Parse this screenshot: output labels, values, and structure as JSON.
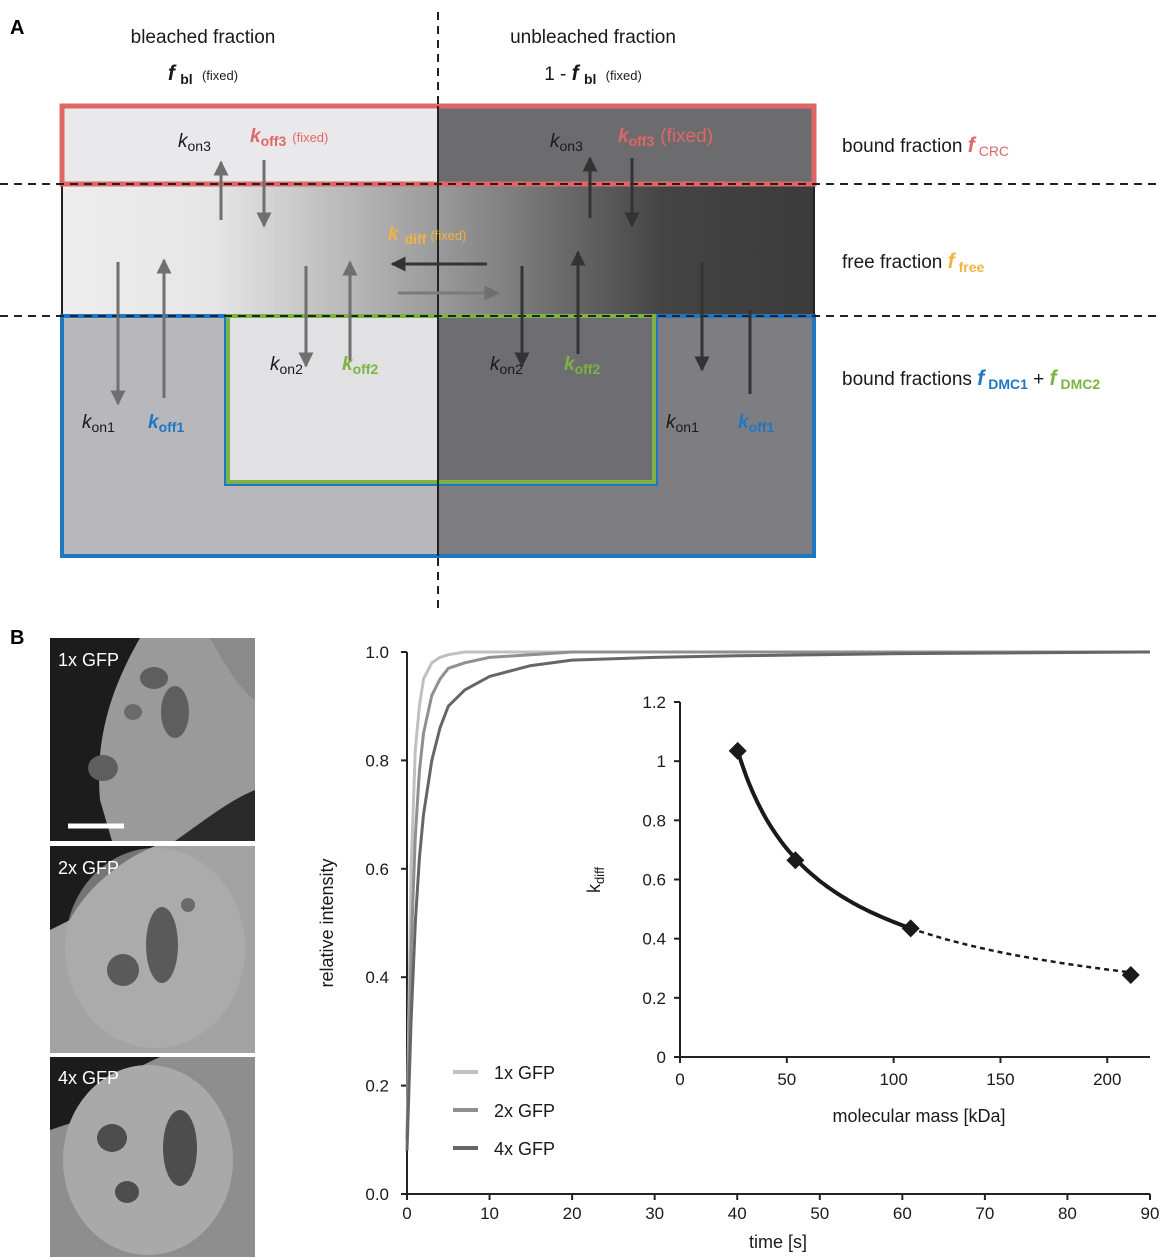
{
  "panel_a": {
    "letter": "A",
    "bleached_title": "bleached fraction",
    "bleached_symbol": "f",
    "bleached_sub": "bl",
    "bleached_fixed": "(fixed)",
    "unbleached_title": "unbleached fraction",
    "unbleached_prefix": "1 - ",
    "unbleached_symbol": "f",
    "unbleached_sub": "bl",
    "unbleached_fixed": "(fixed)",
    "bound_label": "bound fraction ",
    "bound_symbol": "f",
    "bound_sub": "CRC",
    "free_label": "free fraction ",
    "free_symbol": "f",
    "free_sub": "free",
    "bound2_label": "bound fractions ",
    "bound2_symbol1": "f",
    "bound2_sub1": "DMC1",
    "bound2_plus": " + ",
    "bound2_symbol2": "f",
    "bound2_sub2": "DMC2",
    "k": "k",
    "on3": "on3",
    "off3": "off3",
    "fixed": "(fixed)",
    "diff": "diff",
    "on2": "on2",
    "off2": "off2",
    "on1": "on1",
    "off1": "off1",
    "colors": {
      "crc": "#e06666",
      "free": "#f2b441",
      "dmc1": "#1f77c4",
      "dmc2": "#7cb342"
    }
  },
  "panel_b": {
    "letter": "B",
    "images": [
      {
        "label": "1x GFP"
      },
      {
        "label": "2x GFP"
      },
      {
        "label": "4x GFP"
      }
    ]
  },
  "chart_data": [
    {
      "type": "line",
      "xlabel": "time [s]",
      "ylabel": "relative intensity",
      "xlim": [
        0,
        90
      ],
      "ylim": [
        0,
        1.0
      ],
      "xticks": [
        "0",
        "10",
        "20",
        "30",
        "40",
        "50",
        "60",
        "70",
        "80",
        "90"
      ],
      "yticks": [
        "0.0",
        "0.2",
        "0.4",
        "0.6",
        "0.8",
        "1.0"
      ],
      "legend_position": "bottom-left",
      "series": [
        {
          "name": "1x GFP",
          "color": "#c0c0c0",
          "x": [
            0,
            0.5,
            1,
            1.5,
            2,
            3,
            4,
            5,
            7,
            10,
            20,
            90
          ],
          "y": [
            0.1,
            0.6,
            0.82,
            0.9,
            0.95,
            0.98,
            0.99,
            0.995,
            1.0,
            1.0,
            1.0,
            1.0
          ]
        },
        {
          "name": "2x GFP",
          "color": "#8f8f8f",
          "x": [
            0,
            0.5,
            1,
            1.5,
            2,
            3,
            4,
            5,
            7,
            10,
            15,
            20,
            30,
            90
          ],
          "y": [
            0.1,
            0.45,
            0.66,
            0.78,
            0.85,
            0.92,
            0.95,
            0.97,
            0.98,
            0.99,
            0.995,
            1.0,
            1.0,
            1.0
          ]
        },
        {
          "name": "4x GFP",
          "color": "#666666",
          "x": [
            0,
            0.5,
            1,
            1.5,
            2,
            3,
            4,
            5,
            7,
            10,
            15,
            20,
            30,
            40,
            60,
            90
          ],
          "y": [
            0.08,
            0.32,
            0.5,
            0.62,
            0.7,
            0.8,
            0.86,
            0.9,
            0.93,
            0.955,
            0.975,
            0.985,
            0.99,
            0.993,
            0.997,
            1.0
          ]
        }
      ]
    },
    {
      "type": "scatter",
      "xlabel": "molecular mass [kDa]",
      "ylabel": "k",
      "ylabel_sub": "diff",
      "xlim": [
        0,
        220
      ],
      "ylim": [
        0,
        1.2
      ],
      "xticks": [
        "0",
        "50",
        "100",
        "150",
        "200"
      ],
      "yticks": [
        "0",
        "0.2",
        "0.4",
        "0.6",
        "0.8",
        "1",
        "1.2"
      ],
      "points": [
        {
          "x": 27,
          "y": 1.035
        },
        {
          "x": 54,
          "y": 0.665
        },
        {
          "x": 108,
          "y": 0.435
        },
        {
          "x": 211,
          "y": 0.277
        }
      ],
      "fit_solid_range": [
        27,
        108
      ],
      "fit_dashed_range": [
        108,
        211
      ]
    }
  ]
}
